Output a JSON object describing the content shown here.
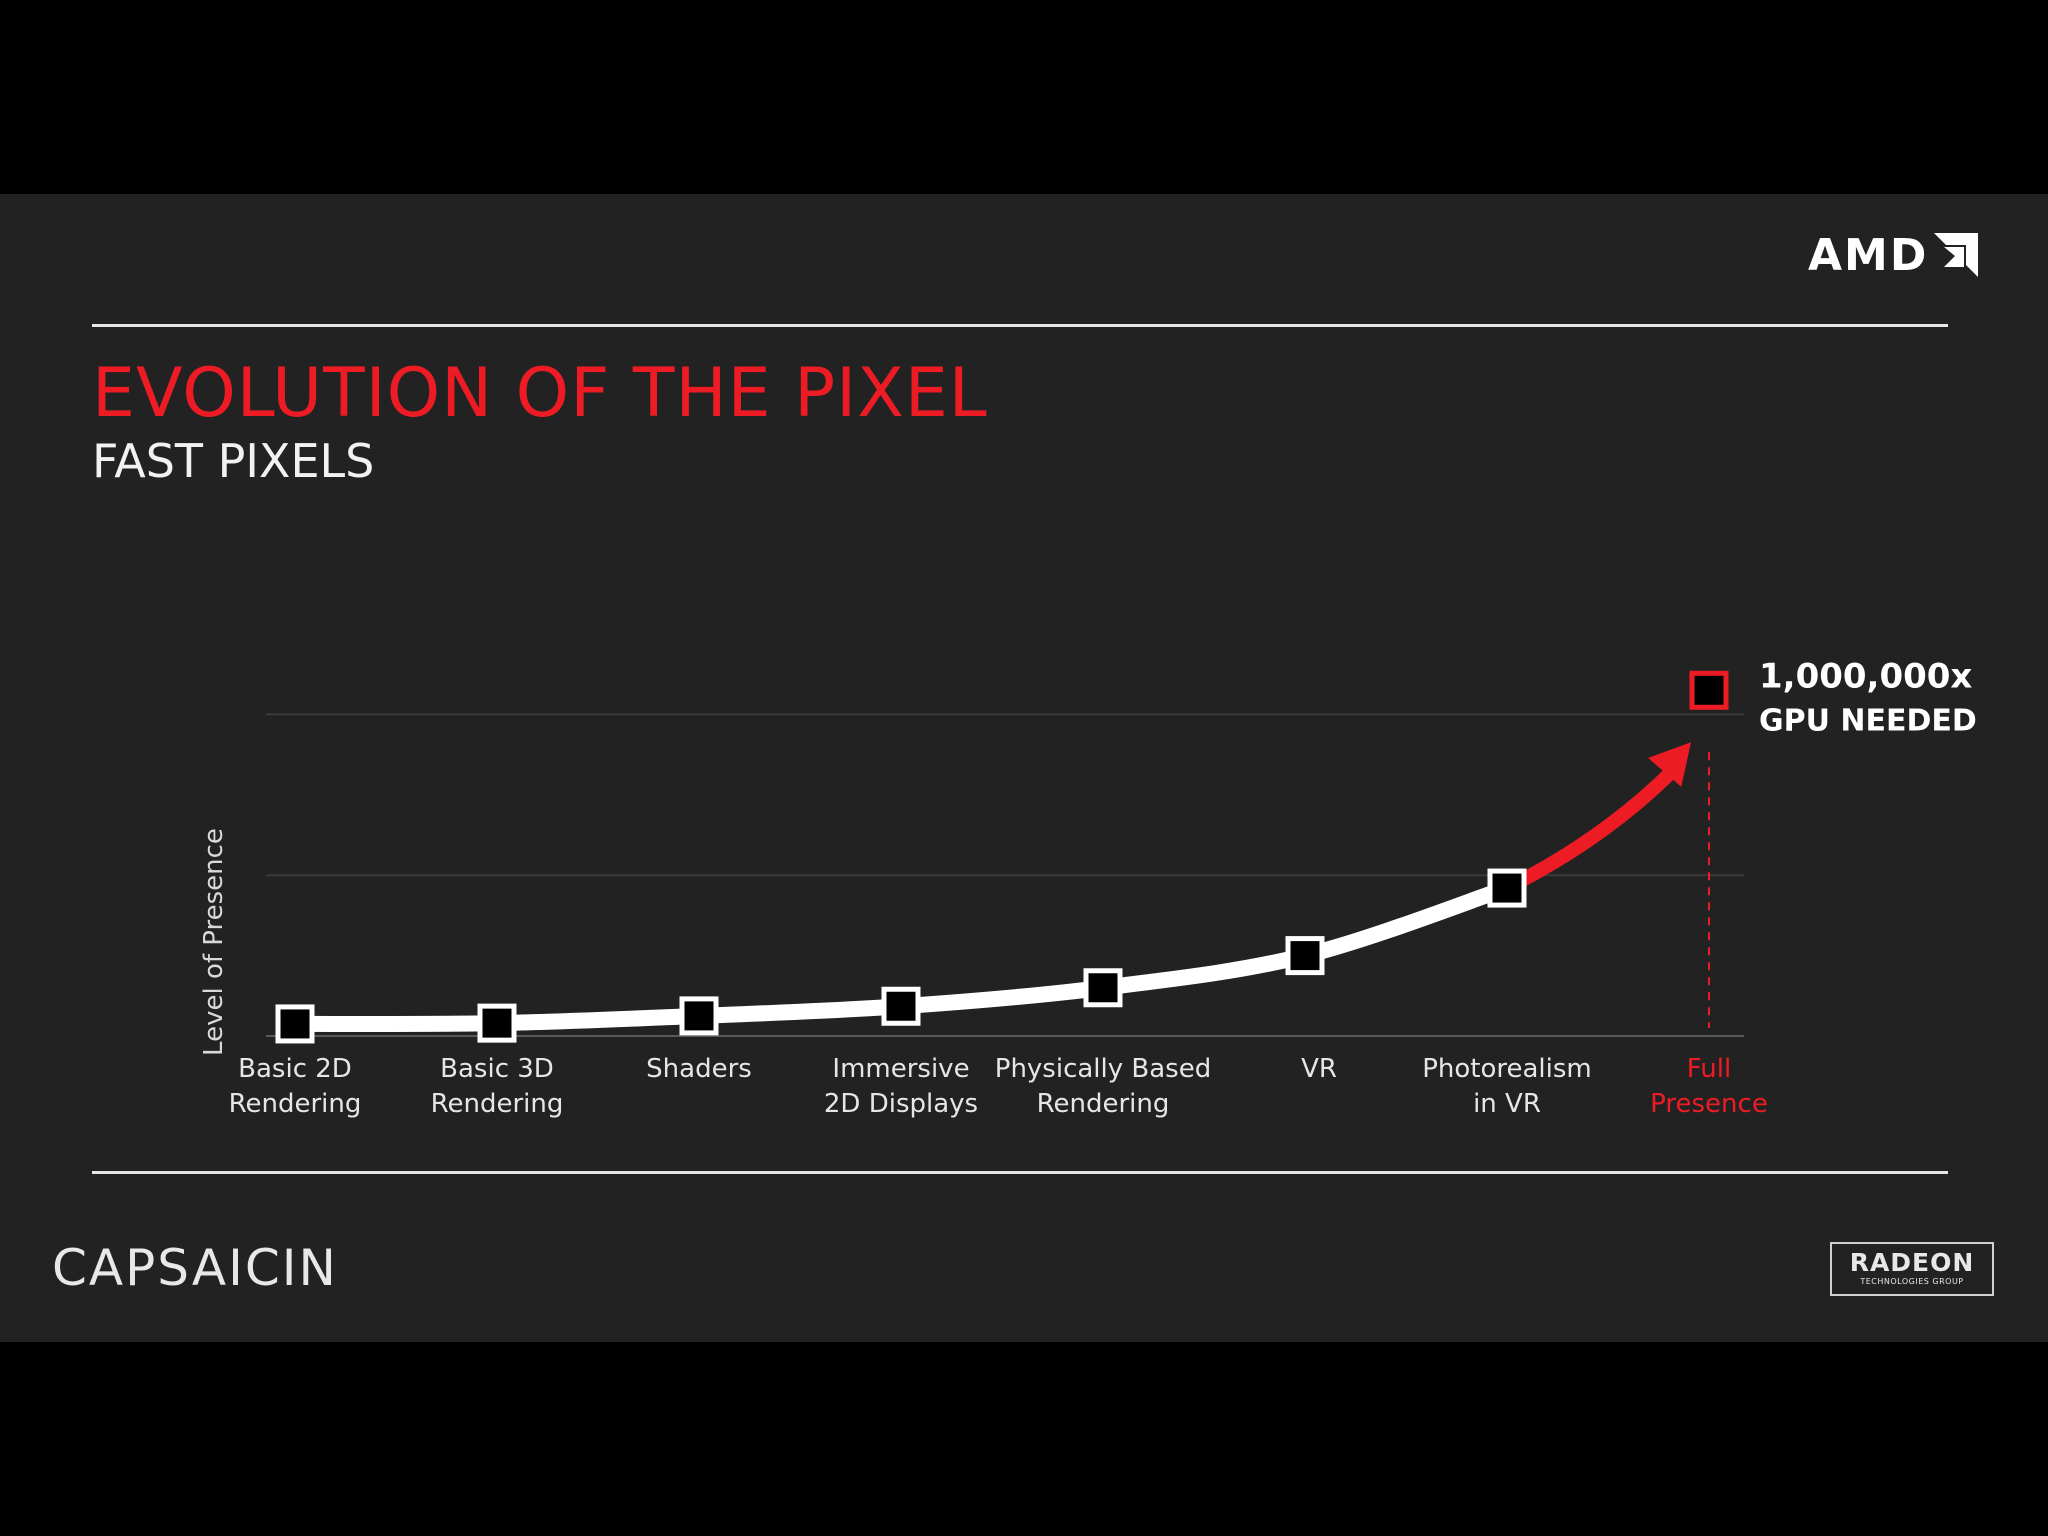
{
  "brand": {
    "company": "AMD",
    "event": "CAPSAICIN",
    "badge_main": "RADEON",
    "badge_sub": "TECHNOLOGIES GROUP"
  },
  "slide": {
    "title": "EVOLUTION OF THE PIXEL",
    "subtitle": "FAST PIXELS"
  },
  "colors": {
    "accent": "#ed1c24",
    "curve": "#ffffff",
    "background": "#222222"
  },
  "chart_data": {
    "type": "line",
    "title": "",
    "ylabel": "Level of Presence",
    "xlabel": "",
    "categories": [
      [
        "Basic 2D",
        "Rendering"
      ],
      [
        "Basic 3D",
        "Rendering"
      ],
      [
        "Shaders"
      ],
      [
        "Immersive",
        "2D Displays"
      ],
      [
        "Physically Based",
        "Rendering"
      ],
      [
        "VR"
      ],
      [
        "Photorealism",
        "in VR"
      ],
      [
        "Full",
        "Presence"
      ]
    ],
    "values": [
      0.15,
      0.16,
      0.25,
      0.37,
      0.6,
      1.0,
      1.84,
      4.3
    ],
    "ylim": [
      0,
      5
    ],
    "y_gridlines": [
      2,
      4
    ],
    "y_tick_labels": false,
    "projected_point": {
      "category_index": 7,
      "annotation": [
        "1,000,000x",
        "GPU NEEDED"
      ],
      "color": "#ed1c24"
    },
    "grid": true
  }
}
